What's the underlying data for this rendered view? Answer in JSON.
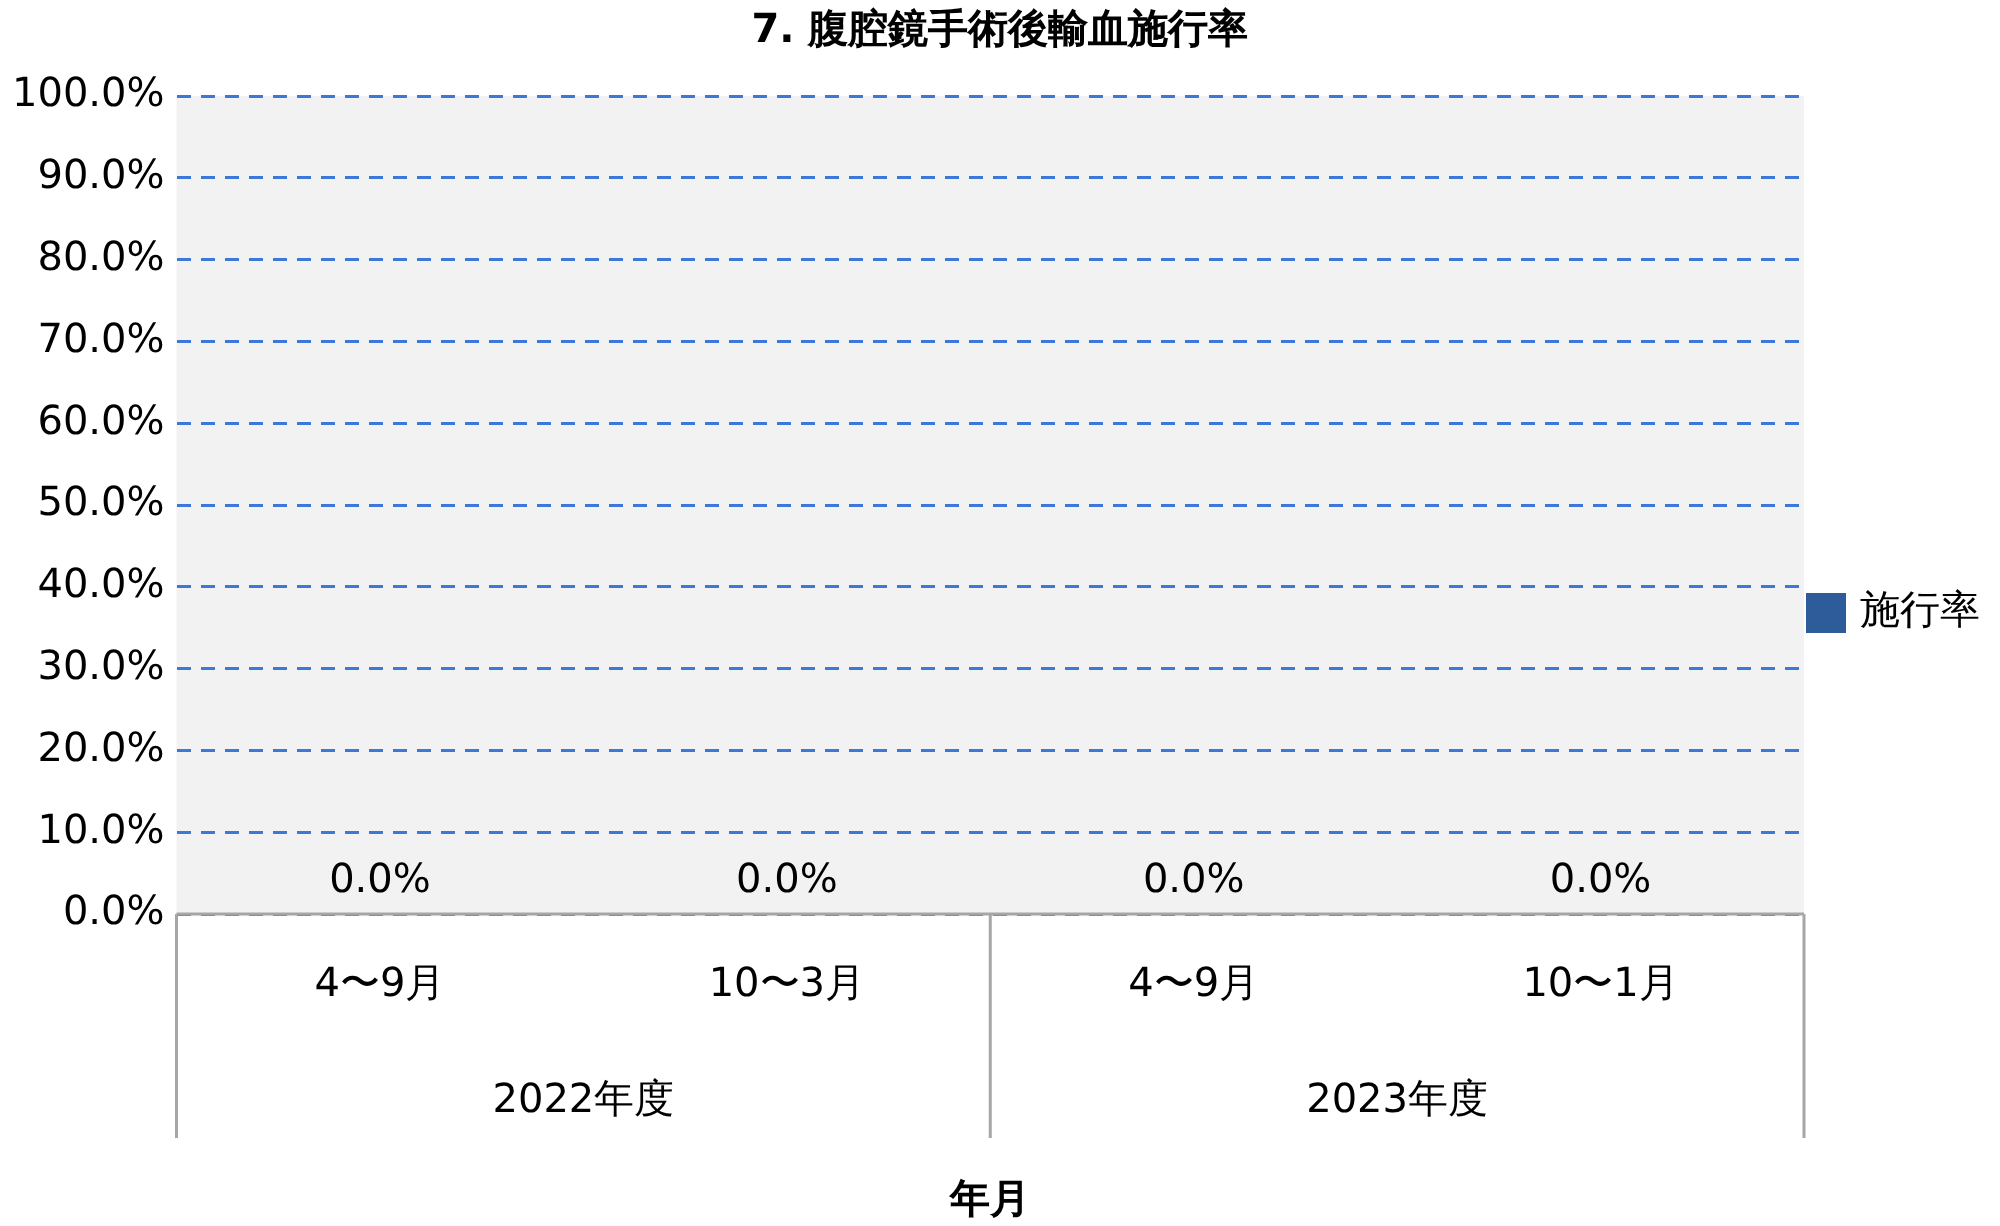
{
  "chart_data": {
    "type": "bar",
    "title": "7. 腹腔鏡手術後輸血施行率",
    "xlabel": "年月",
    "categories": [
      "4〜9月",
      "10〜3月",
      "4〜9月",
      "10〜1月"
    ],
    "annotations": [
      "2022年度",
      "2023年度"
    ],
    "series": [
      {
        "name": "施行率",
        "color": "#2e5c9a",
        "values": [
          0,
          0,
          0,
          0
        ],
        "value_labels": [
          "0.0%",
          "0.0%",
          "0.0%",
          "0.0%"
        ]
      }
    ],
    "ylim": [
      0,
      100
    ],
    "yticks": [
      {
        "value": 0,
        "label": "0.0%"
      },
      {
        "value": 10,
        "label": "10.0%"
      },
      {
        "value": 20,
        "label": "20.0%"
      },
      {
        "value": 30,
        "label": "30.0%"
      },
      {
        "value": 40,
        "label": "40.0%"
      },
      {
        "value": 50,
        "label": "50.0%"
      },
      {
        "value": 60,
        "label": "60.0%"
      },
      {
        "value": 70,
        "label": "70.0%"
      },
      {
        "value": 80,
        "label": "80.0%"
      },
      {
        "value": 90,
        "label": "90.0%"
      },
      {
        "value": 100,
        "label": "100.0%"
      }
    ],
    "grid": "y",
    "legend": "right"
  }
}
